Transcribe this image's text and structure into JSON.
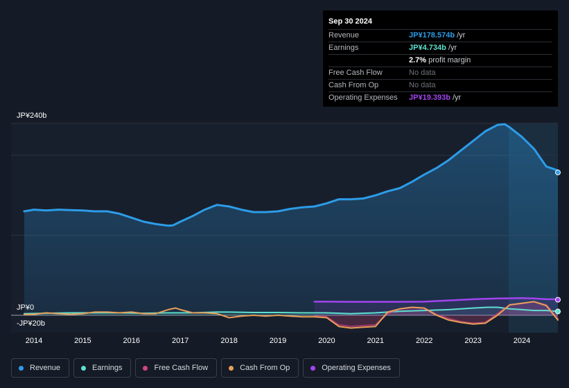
{
  "tooltip": {
    "date": "Sep 30 2024",
    "rows": [
      {
        "label": "Revenue",
        "value": "JP¥178.574b",
        "suffix": " /yr",
        "color": "#2d9ce8"
      },
      {
        "label": "Earnings",
        "value": "JP¥4.734b",
        "suffix": " /yr",
        "color": "#5fe0d0"
      },
      {
        "label": "",
        "value": "2.7%",
        "suffix": " profit margin",
        "color": "#ffffff"
      },
      {
        "label": "Free Cash Flow",
        "value": "No data",
        "suffix": "",
        "color": "#6e737c"
      },
      {
        "label": "Cash From Op",
        "value": "No data",
        "suffix": "",
        "color": "#6e737c"
      },
      {
        "label": "Operating Expenses",
        "value": "JP¥19.393b",
        "suffix": " /yr",
        "color": "#a245f0"
      }
    ]
  },
  "legend": [
    {
      "label": "Revenue",
      "color": "#2d9ce8"
    },
    {
      "label": "Earnings",
      "color": "#5fe0d0"
    },
    {
      "label": "Free Cash Flow",
      "color": "#d3457e"
    },
    {
      "label": "Cash From Op",
      "color": "#e8a05a"
    },
    {
      "label": "Operating Expenses",
      "color": "#a245f0"
    }
  ],
  "chart_data": {
    "type": "line",
    "title": "",
    "ylabel_top": "JP¥240b",
    "ylabel_zero": "JP¥0",
    "ylabel_bottom": "-JP¥20b",
    "ylim": [
      -20,
      240
    ],
    "xlim": [
      2013.8,
      2024.75
    ],
    "x_ticks": [
      "2014",
      "2015",
      "2016",
      "2017",
      "2018",
      "2019",
      "2020",
      "2021",
      "2022",
      "2023",
      "2024"
    ],
    "series": [
      {
        "name": "Revenue",
        "color": "#2d9ce8",
        "points": [
          [
            2013.8,
            130
          ],
          [
            2014.0,
            132
          ],
          [
            2014.25,
            131
          ],
          [
            2014.5,
            132
          ],
          [
            2014.75,
            131.5
          ],
          [
            2015.0,
            131
          ],
          [
            2015.25,
            130
          ],
          [
            2015.5,
            130
          ],
          [
            2015.75,
            127
          ],
          [
            2016.0,
            122
          ],
          [
            2016.25,
            117
          ],
          [
            2016.5,
            114
          ],
          [
            2016.75,
            112
          ],
          [
            2016.85,
            112.5
          ],
          [
            2017.0,
            117
          ],
          [
            2017.25,
            124
          ],
          [
            2017.5,
            132
          ],
          [
            2017.75,
            138
          ],
          [
            2018.0,
            136
          ],
          [
            2018.25,
            132
          ],
          [
            2018.5,
            129
          ],
          [
            2018.75,
            129
          ],
          [
            2019.0,
            130
          ],
          [
            2019.25,
            133
          ],
          [
            2019.5,
            135
          ],
          [
            2019.75,
            136
          ],
          [
            2020.0,
            140
          ],
          [
            2020.25,
            145
          ],
          [
            2020.5,
            145
          ],
          [
            2020.75,
            146
          ],
          [
            2021.0,
            150
          ],
          [
            2021.25,
            155
          ],
          [
            2021.5,
            159
          ],
          [
            2021.75,
            167
          ],
          [
            2022.0,
            176
          ],
          [
            2022.25,
            184
          ],
          [
            2022.5,
            194
          ],
          [
            2022.75,
            206
          ],
          [
            2023.0,
            218
          ],
          [
            2023.25,
            230
          ],
          [
            2023.5,
            238
          ],
          [
            2023.65,
            239
          ],
          [
            2023.75,
            235
          ],
          [
            2024.0,
            223
          ],
          [
            2024.25,
            208
          ],
          [
            2024.5,
            186
          ],
          [
            2024.75,
            181
          ],
          [
            2024.95,
            178.574
          ]
        ]
      },
      {
        "name": "Earnings",
        "color": "#5fe0d0",
        "points": [
          [
            2013.8,
            2
          ],
          [
            2014.25,
            2.5
          ],
          [
            2014.75,
            3
          ],
          [
            2015.25,
            3
          ],
          [
            2015.75,
            3
          ],
          [
            2016.25,
            2.5
          ],
          [
            2016.75,
            3
          ],
          [
            2017.25,
            3
          ],
          [
            2017.75,
            4
          ],
          [
            2018.0,
            4
          ],
          [
            2018.5,
            3.5
          ],
          [
            2019.0,
            3.5
          ],
          [
            2019.5,
            3
          ],
          [
            2020.0,
            3
          ],
          [
            2020.5,
            2
          ],
          [
            2021.0,
            3
          ],
          [
            2021.5,
            5
          ],
          [
            2022.0,
            6
          ],
          [
            2022.5,
            7
          ],
          [
            2023.0,
            9
          ],
          [
            2023.3,
            10
          ],
          [
            2023.5,
            10
          ],
          [
            2023.75,
            8
          ],
          [
            2024.0,
            7
          ],
          [
            2024.25,
            6
          ],
          [
            2024.5,
            6
          ],
          [
            2024.95,
            4.734
          ]
        ]
      },
      {
        "name": "Free Cash Flow",
        "color": "#d3457e",
        "points": [
          [
            2019.75,
            -1
          ],
          [
            2020.0,
            -2
          ],
          [
            2020.25,
            -12
          ],
          [
            2020.5,
            -14
          ],
          [
            2020.75,
            -13
          ],
          [
            2021.0,
            -12
          ],
          [
            2021.25,
            2
          ],
          [
            2021.5,
            8
          ],
          [
            2021.75,
            10
          ],
          [
            2022.0,
            9
          ],
          [
            2022.25,
            1
          ],
          [
            2022.5,
            -4
          ],
          [
            2022.75,
            -8
          ],
          [
            2023.0,
            -10
          ],
          [
            2023.25,
            -9
          ],
          [
            2023.5,
            2
          ],
          [
            2023.75,
            13
          ],
          [
            2024.0,
            15
          ],
          [
            2024.25,
            17
          ],
          [
            2024.5,
            13
          ],
          [
            2024.75,
            -4
          ]
        ]
      },
      {
        "name": "Cash From Op",
        "color": "#e8a05a",
        "points": [
          [
            2013.8,
            1
          ],
          [
            2014.0,
            1
          ],
          [
            2014.25,
            3
          ],
          [
            2014.5,
            2
          ],
          [
            2014.75,
            1
          ],
          [
            2015.0,
            2
          ],
          [
            2015.25,
            4
          ],
          [
            2015.5,
            4
          ],
          [
            2015.75,
            3
          ],
          [
            2016.0,
            4
          ],
          [
            2016.25,
            2
          ],
          [
            2016.5,
            2
          ],
          [
            2016.75,
            7
          ],
          [
            2016.9,
            9
          ],
          [
            2017.0,
            7
          ],
          [
            2017.25,
            3
          ],
          [
            2017.5,
            3
          ],
          [
            2017.75,
            2
          ],
          [
            2018.0,
            -3
          ],
          [
            2018.25,
            -1
          ],
          [
            2018.5,
            0
          ],
          [
            2018.75,
            -1
          ],
          [
            2019.0,
            0
          ],
          [
            2019.25,
            -1
          ],
          [
            2019.5,
            -2
          ],
          [
            2019.75,
            -2
          ],
          [
            2020.0,
            -3
          ],
          [
            2020.25,
            -14
          ],
          [
            2020.5,
            -16
          ],
          [
            2020.75,
            -15
          ],
          [
            2021.0,
            -14
          ],
          [
            2021.25,
            4
          ],
          [
            2021.5,
            8
          ],
          [
            2021.75,
            10
          ],
          [
            2022.0,
            9
          ],
          [
            2022.25,
            0
          ],
          [
            2022.5,
            -6
          ],
          [
            2022.75,
            -9
          ],
          [
            2023.0,
            -11
          ],
          [
            2023.25,
            -10
          ],
          [
            2023.5,
            0
          ],
          [
            2023.75,
            13
          ],
          [
            2024.0,
            15
          ],
          [
            2024.25,
            17
          ],
          [
            2024.5,
            12
          ],
          [
            2024.75,
            -6
          ]
        ]
      },
      {
        "name": "Operating Expenses",
        "color": "#a245f0",
        "points": [
          [
            2019.75,
            17
          ],
          [
            2020.0,
            17
          ],
          [
            2020.5,
            16.8
          ],
          [
            2021.0,
            16.8
          ],
          [
            2021.5,
            16.8
          ],
          [
            2022.0,
            17
          ],
          [
            2022.5,
            18.5
          ],
          [
            2023.0,
            20
          ],
          [
            2023.5,
            21
          ],
          [
            2024.0,
            21.5
          ],
          [
            2024.25,
            21
          ],
          [
            2024.5,
            20
          ],
          [
            2024.75,
            20
          ],
          [
            2024.95,
            19.393
          ]
        ]
      }
    ]
  }
}
